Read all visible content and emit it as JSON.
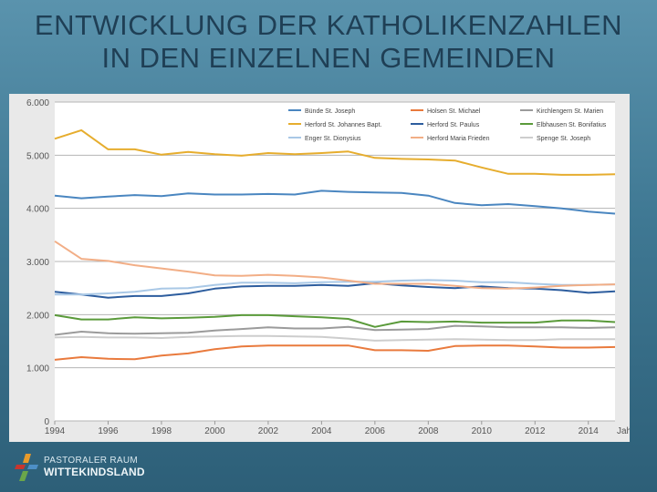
{
  "slide": {
    "title_line1": "ENTWICKLUNG DER KATHOLIKENZAHLEN",
    "title_line2": "IN DEN EINZELNEN GEMEINDEN"
  },
  "logo": {
    "line1": "PASTORALER RAUM",
    "line2": "WITTEKINDSLAND"
  },
  "chart_data": {
    "type": "line",
    "title": "",
    "xlabel": "Jahr",
    "ylabel": "",
    "grid": true,
    "legend_position": "top-right",
    "ylim": [
      0,
      6000
    ],
    "xlim": [
      1994,
      2015
    ],
    "x": [
      1994,
      1995,
      1996,
      1997,
      1998,
      1999,
      2000,
      2001,
      2002,
      2003,
      2004,
      2005,
      2006,
      2007,
      2008,
      2009,
      2010,
      2011,
      2012,
      2013,
      2014,
      2015
    ],
    "x_ticks": [
      "1994",
      "1996",
      "1998",
      "2000",
      "2002",
      "2004",
      "2006",
      "2008",
      "2010",
      "2012",
      "2014"
    ],
    "y_ticks": [
      "0",
      "1.000",
      "2.000",
      "3.000",
      "4.000",
      "5.000",
      "6.000"
    ],
    "series": [
      {
        "name": "Bünde St. Joseph",
        "color": "#4a86c0",
        "values": [
          4240,
          4190,
          4220,
          4250,
          4230,
          4280,
          4260,
          4260,
          4270,
          4260,
          4330,
          4310,
          4300,
          4290,
          4240,
          4100,
          4060,
          4080,
          4040,
          4000,
          3940,
          3900
        ]
      },
      {
        "name": "Holsen St. Michael",
        "color": "#e97a3d",
        "values": [
          1150,
          1200,
          1170,
          1160,
          1230,
          1270,
          1350,
          1400,
          1420,
          1420,
          1420,
          1420,
          1330,
          1330,
          1320,
          1410,
          1420,
          1420,
          1400,
          1380,
          1380,
          1390
        ]
      },
      {
        "name": "Kirchlengern St. Marien",
        "color": "#9b9b9b",
        "values": [
          1620,
          1680,
          1650,
          1640,
          1650,
          1660,
          1700,
          1730,
          1760,
          1740,
          1740,
          1770,
          1710,
          1720,
          1730,
          1790,
          1780,
          1760,
          1760,
          1760,
          1750,
          1760
        ]
      },
      {
        "name": "Herford St. Johannes Bapt.",
        "color": "#e6ad2e",
        "values": [
          5310,
          5470,
          5110,
          5110,
          5010,
          5060,
          5020,
          4990,
          5040,
          5020,
          5040,
          5070,
          4950,
          4930,
          4920,
          4900,
          4770,
          4650,
          4650,
          4630,
          4630,
          4640
        ]
      },
      {
        "name": "Herford St. Paulus",
        "color": "#2d5d9e",
        "values": [
          2430,
          2380,
          2320,
          2350,
          2350,
          2400,
          2490,
          2530,
          2540,
          2540,
          2560,
          2540,
          2590,
          2550,
          2520,
          2500,
          2530,
          2500,
          2490,
          2460,
          2410,
          2440
        ]
      },
      {
        "name": "Elbhausen St. Bonifatius",
        "color": "#5a9a3a",
        "values": [
          1990,
          1910,
          1910,
          1950,
          1930,
          1940,
          1960,
          1990,
          1990,
          1970,
          1950,
          1920,
          1770,
          1870,
          1860,
          1870,
          1850,
          1850,
          1850,
          1890,
          1890,
          1860
        ]
      },
      {
        "name": "Enger St. Dionysius",
        "color": "#a9c8e6",
        "values": [
          2380,
          2380,
          2400,
          2430,
          2490,
          2500,
          2560,
          2600,
          2600,
          2590,
          2610,
          2620,
          2620,
          2640,
          2650,
          2640,
          2610,
          2610,
          2580,
          2560,
          2560,
          2570
        ]
      },
      {
        "name": "Herford Maria Frieden",
        "color": "#f2ae86",
        "values": [
          3380,
          3050,
          3010,
          2930,
          2870,
          2810,
          2740,
          2730,
          2750,
          2730,
          2700,
          2640,
          2580,
          2580,
          2580,
          2540,
          2500,
          2490,
          2510,
          2540,
          2560,
          2570
        ]
      },
      {
        "name": "Spenge St. Joseph",
        "color": "#cdcdcd",
        "values": [
          1570,
          1580,
          1570,
          1570,
          1560,
          1580,
          1590,
          1600,
          1600,
          1590,
          1580,
          1550,
          1510,
          1520,
          1530,
          1540,
          1530,
          1520,
          1520,
          1540,
          1540,
          1540
        ]
      }
    ]
  }
}
